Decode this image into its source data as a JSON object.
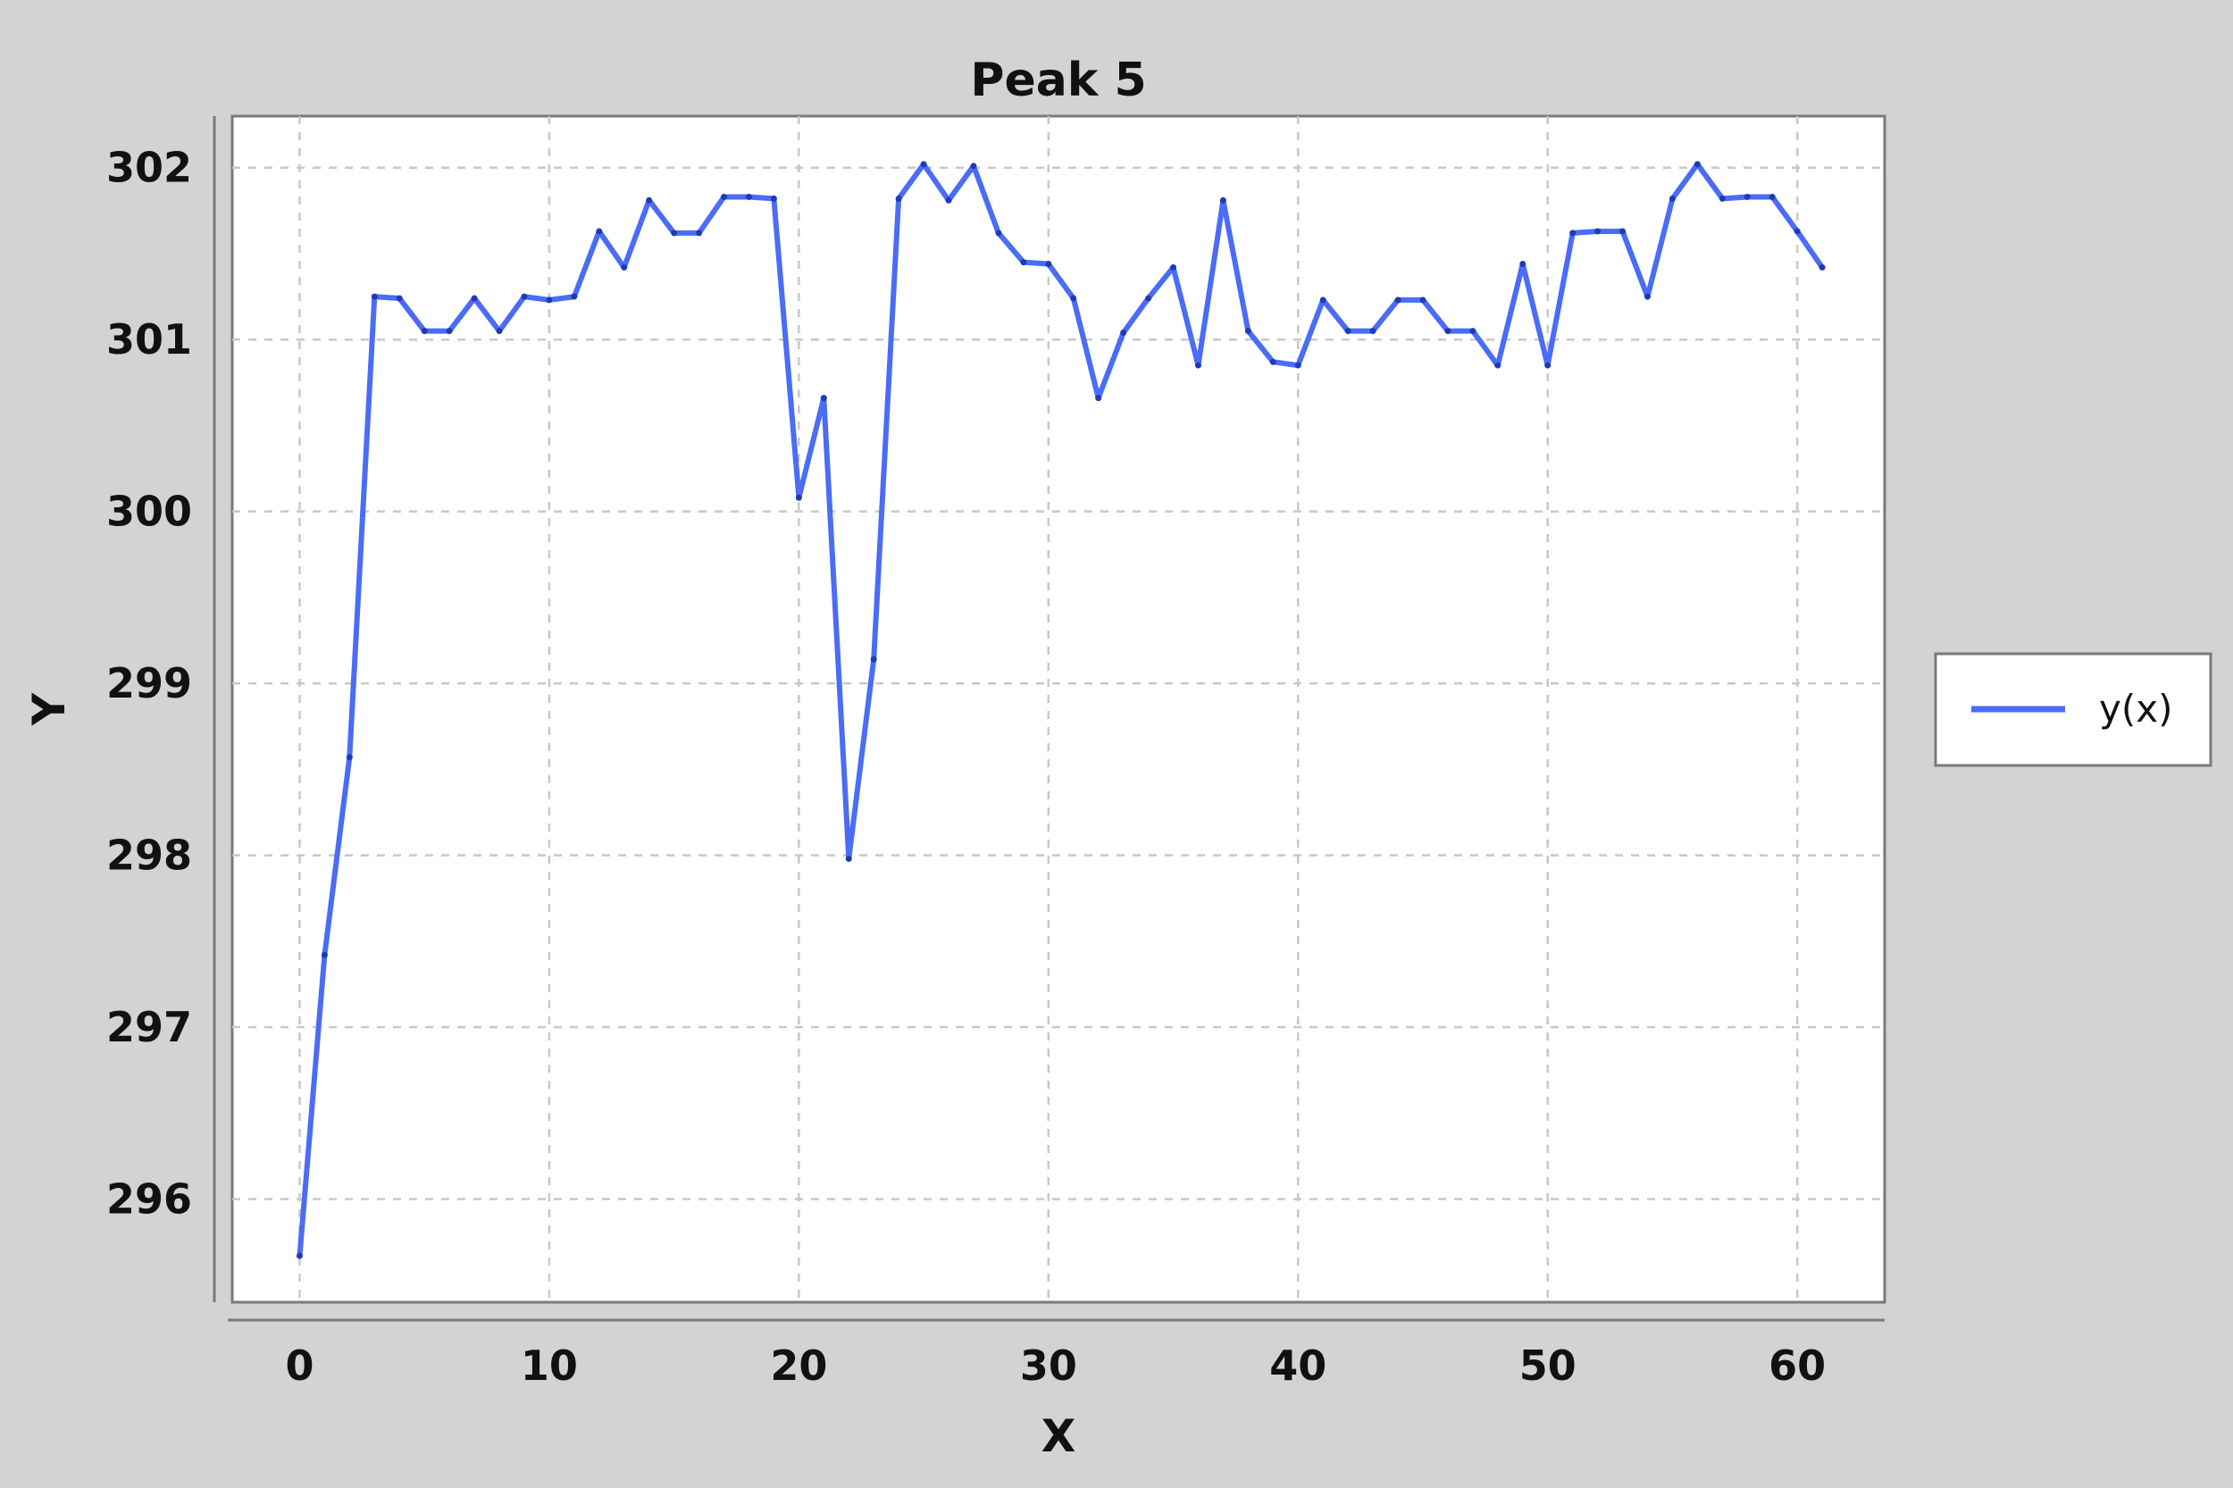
{
  "chart_data": {
    "type": "line",
    "title": "Peak 5",
    "xlabel": "X",
    "ylabel": "Y",
    "xlim": [
      -2.7,
      63.5
    ],
    "ylim": [
      295.4,
      302.3
    ],
    "xticks": [
      0,
      10,
      20,
      30,
      40,
      50,
      60
    ],
    "yticks": [
      296,
      297,
      298,
      299,
      300,
      301,
      302
    ],
    "grid": true,
    "legend_position": "right",
    "series": [
      {
        "name": "y(x)",
        "color": "#4a6cf7",
        "x": [
          0,
          1,
          2,
          3,
          4,
          5,
          6,
          7,
          8,
          9,
          10,
          11,
          12,
          13,
          14,
          15,
          16,
          17,
          18,
          19,
          20,
          21,
          22,
          23,
          24,
          25,
          26,
          27,
          28,
          29,
          30,
          31,
          32,
          33,
          34,
          35,
          36,
          37,
          38,
          39,
          40,
          41,
          42,
          43,
          44,
          45,
          46,
          47,
          48,
          49,
          50,
          51,
          52,
          53,
          54,
          55,
          56,
          57,
          58,
          59,
          60,
          61
        ],
        "y": [
          295.67,
          297.42,
          298.57,
          301.25,
          301.24,
          301.05,
          301.05,
          301.24,
          301.05,
          301.25,
          301.23,
          301.25,
          301.63,
          301.42,
          301.81,
          301.62,
          301.62,
          301.83,
          301.83,
          301.82,
          300.08,
          300.66,
          297.98,
          299.14,
          301.82,
          302.02,
          301.81,
          302.01,
          301.62,
          301.45,
          301.44,
          301.24,
          300.66,
          301.04,
          301.24,
          301.42,
          300.85,
          301.81,
          301.05,
          300.87,
          300.85,
          301.23,
          301.05,
          301.05,
          301.23,
          301.23,
          301.05,
          301.05,
          300.85,
          301.44,
          300.85,
          301.62,
          301.63,
          301.63,
          301.25,
          301.82,
          302.02,
          301.82,
          301.83,
          301.83,
          301.63,
          301.42
        ]
      }
    ]
  }
}
